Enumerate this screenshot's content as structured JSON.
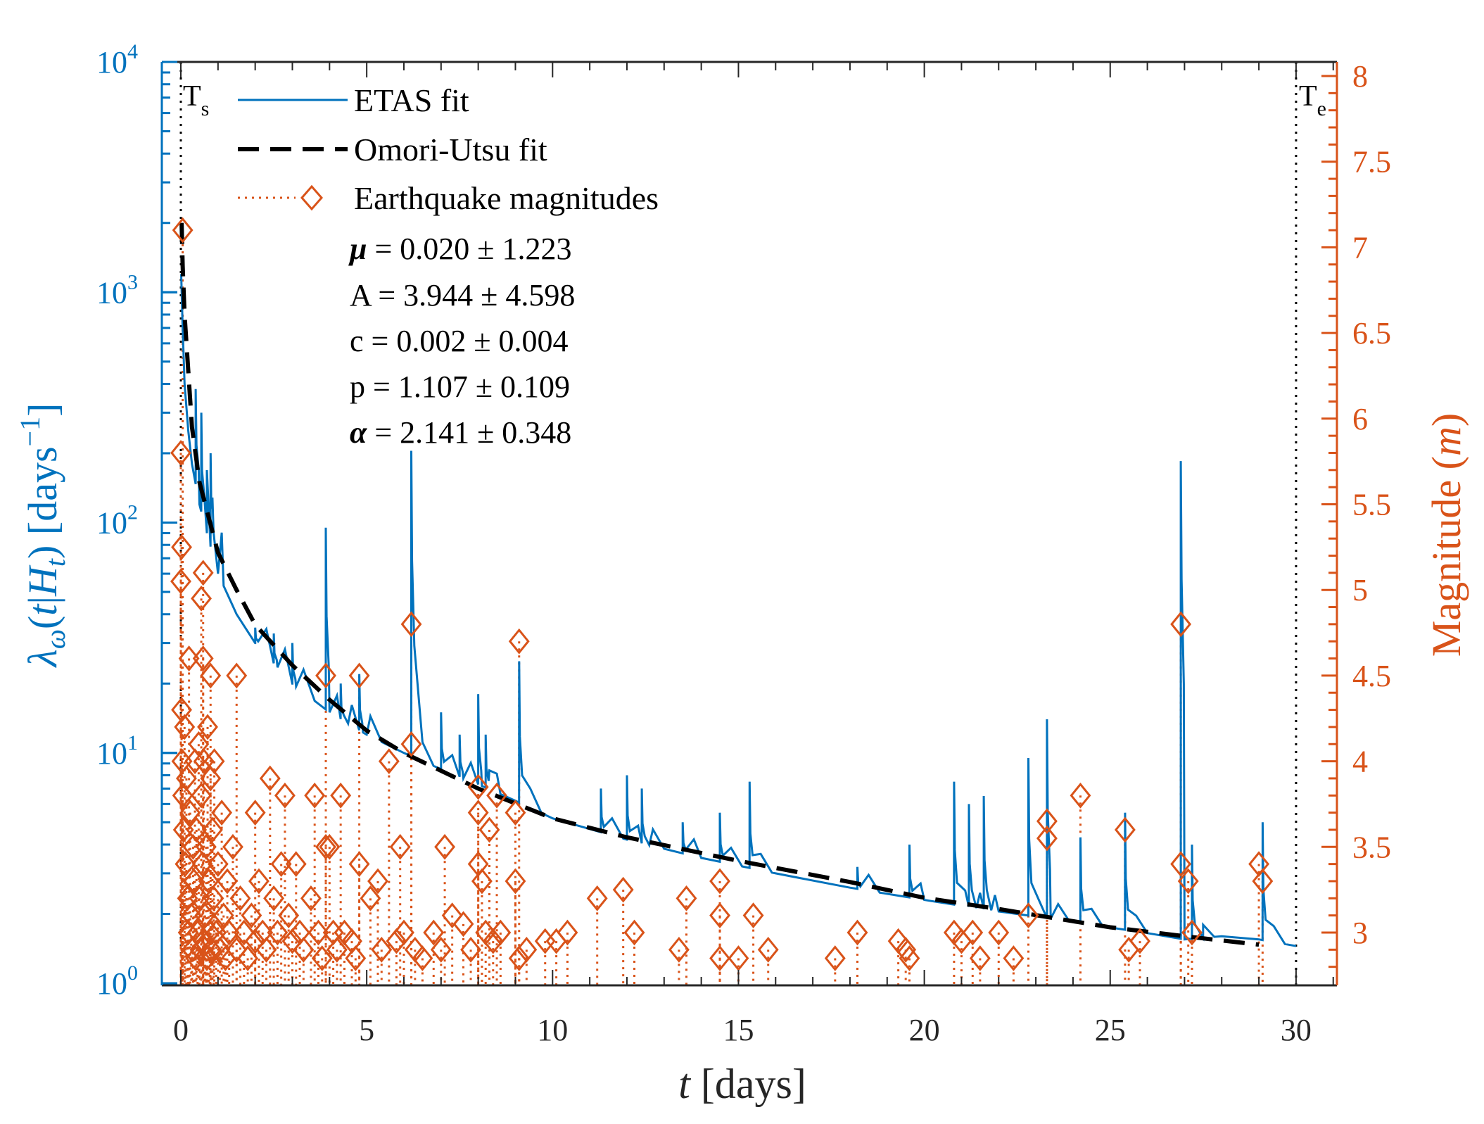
{
  "chart_data": {
    "type": "line",
    "title": "",
    "xlabel": {
      "italic": "t",
      "rest": " [days]"
    },
    "ylabel_left": {
      "text": "λω(t|Ht) [days⁻¹]",
      "lambda": "λ",
      "omega": "ω",
      "open": "(",
      "t": "t",
      "bar": "|",
      "H": "H",
      "sub": "t",
      "close": ")",
      "unit": " [days",
      "exp": "−1",
      "end": "]"
    },
    "ylabel_right": {
      "text": "Magnitude",
      "open": " (",
      "m": "m",
      "close": ")"
    },
    "xlim": [
      -0.5,
      31
    ],
    "xticks": [
      "0",
      "5",
      "10",
      "15",
      "20",
      "25",
      "30"
    ],
    "xtick_values": [
      0,
      5,
      10,
      15,
      20,
      25,
      30
    ],
    "ylim_left": [
      1,
      10000
    ],
    "yscale_left": "log",
    "yticks_left": [
      {
        "base": "10",
        "exp": "0"
      },
      {
        "base": "10",
        "exp": "1"
      },
      {
        "base": "10",
        "exp": "2"
      },
      {
        "base": "10",
        "exp": "3"
      },
      {
        "base": "10",
        "exp": "4"
      }
    ],
    "ylim_right": [
      2.72,
      8.05
    ],
    "yticks_right": [
      "3",
      "3.5",
      "4",
      "4.5",
      "5",
      "5.5",
      "6",
      "6.5",
      "7",
      "7.5",
      "8"
    ],
    "ytick_right_values": [
      3,
      3.5,
      4,
      4.5,
      5,
      5.5,
      6,
      6.5,
      7,
      7.5,
      8
    ],
    "colors": {
      "etas": "#0072BD",
      "omori": "#000000",
      "mag": "#D95319",
      "axis": "#262626"
    },
    "markers": {
      "start": {
        "label": "T",
        "sub": "s",
        "t": 0
      },
      "end": {
        "label": "T",
        "sub": "e",
        "t": 30
      }
    },
    "legend": {
      "placement": "top-left",
      "items": [
        {
          "label": "ETAS fit",
          "style": "solid"
        },
        {
          "label": "Omori-Utsu fit",
          "style": "dashed"
        },
        {
          "label": "Earthquake magnitudes",
          "style": "dotted-diamond"
        }
      ]
    },
    "parameters": [
      {
        "symbol": "μ",
        "value": " = 0.020 ± 1.223",
        "italic": true
      },
      {
        "symbol": "A",
        "value": " = 3.944 ± 4.598",
        "italic": false
      },
      {
        "symbol": "c",
        "value": " = 0.002 ± 0.004",
        "italic": false
      },
      {
        "symbol": "p",
        "value": " = 1.107 ± 0.109",
        "italic": false
      },
      {
        "symbol": "α",
        "value": " = 2.141 ± 0.348",
        "italic": true
      }
    ],
    "series": [
      {
        "name": "ETAS fit",
        "axis": "left",
        "baseline": [
          [
            0.01,
            1200
          ],
          [
            0.05,
            700
          ],
          [
            0.1,
            400
          ],
          [
            0.2,
            250
          ],
          [
            0.3,
            180
          ],
          [
            0.5,
            120
          ],
          [
            0.7,
            90
          ],
          [
            1,
            60
          ],
          [
            1.5,
            40
          ],
          [
            2,
            30
          ],
          [
            3,
            20
          ],
          [
            4,
            15
          ],
          [
            5,
            12
          ],
          [
            6,
            10
          ],
          [
            7,
            8.5
          ],
          [
            8,
            7.3
          ],
          [
            9,
            6.2
          ],
          [
            10,
            5.2
          ],
          [
            12,
            4.2
          ],
          [
            14,
            3.5
          ],
          [
            16,
            3.0
          ],
          [
            18,
            2.6
          ],
          [
            20,
            2.3
          ],
          [
            22,
            2.05
          ],
          [
            24,
            1.85
          ],
          [
            26,
            1.65
          ],
          [
            27,
            1.55
          ],
          [
            28,
            1.6
          ],
          [
            29,
            1.55
          ],
          [
            30,
            1.45
          ]
        ],
        "spikes": [
          [
            0.4,
            380
          ],
          [
            0.55,
            300
          ],
          [
            0.8,
            200
          ],
          [
            2.0,
            35
          ],
          [
            2.5,
            33
          ],
          [
            3.0,
            30
          ],
          [
            3.9,
            95
          ],
          [
            4.3,
            20
          ],
          [
            4.8,
            22
          ],
          [
            6.2,
            205
          ],
          [
            7.0,
            15
          ],
          [
            7.5,
            12
          ],
          [
            8.0,
            18
          ],
          [
            8.2,
            12
          ],
          [
            9.1,
            25
          ],
          [
            11.3,
            7
          ],
          [
            12.0,
            8
          ],
          [
            12.4,
            7
          ],
          [
            13.5,
            5
          ],
          [
            14.5,
            5.5
          ],
          [
            15.3,
            7.5
          ],
          [
            18.2,
            3.2
          ],
          [
            19.6,
            4
          ],
          [
            20.8,
            7.5
          ],
          [
            21.2,
            6
          ],
          [
            21.6,
            6.5
          ],
          [
            22.8,
            9.5
          ],
          [
            23.3,
            14
          ],
          [
            24.2,
            4.3
          ],
          [
            25.4,
            5.5
          ],
          [
            26.9,
            185
          ],
          [
            27.2,
            4
          ],
          [
            29.1,
            5
          ]
        ]
      },
      {
        "name": "Omori-Utsu fit",
        "axis": "left",
        "points": [
          [
            0.02,
            2000
          ],
          [
            0.05,
            1300
          ],
          [
            0.1,
            800
          ],
          [
            0.3,
            260
          ],
          [
            0.5,
            150
          ],
          [
            1,
            74
          ],
          [
            1.5,
            51
          ],
          [
            2,
            36
          ],
          [
            3,
            24
          ],
          [
            4,
            17
          ],
          [
            5,
            12.5
          ],
          [
            6,
            10
          ],
          [
            8,
            7
          ],
          [
            10,
            5.2
          ],
          [
            12,
            4.3
          ],
          [
            15,
            3.4
          ],
          [
            18,
            2.75
          ],
          [
            20,
            2.35
          ],
          [
            22,
            2.1
          ],
          [
            25,
            1.75
          ],
          [
            27,
            1.6
          ],
          [
            29,
            1.47
          ]
        ]
      },
      {
        "name": "Earthquake magnitudes",
        "axis": "right",
        "points": [
          [
            0.05,
            7.1
          ],
          [
            0.0,
            5.8
          ],
          [
            0.02,
            5.25
          ],
          [
            0.0,
            5.05
          ],
          [
            0.6,
            5.1
          ],
          [
            0.55,
            4.95
          ],
          [
            0.6,
            4.6
          ],
          [
            0.8,
            4.5
          ],
          [
            1.5,
            4.5
          ],
          [
            3.9,
            4.5
          ],
          [
            4.8,
            4.5
          ],
          [
            6.2,
            4.8
          ],
          [
            9.1,
            4.7
          ],
          [
            6.2,
            4.1
          ],
          [
            5.6,
            4.0
          ],
          [
            2.4,
            3.9
          ],
          [
            3.6,
            3.8
          ],
          [
            4.3,
            3.8
          ],
          [
            2.8,
            3.8
          ],
          [
            2.0,
            3.7
          ],
          [
            8.0,
            3.85
          ],
          [
            8.0,
            3.7
          ],
          [
            8.5,
            3.8
          ],
          [
            9.0,
            3.7
          ],
          [
            8.3,
            3.6
          ],
          [
            5.9,
            3.5
          ],
          [
            7.1,
            3.5
          ],
          [
            3.9,
            3.5
          ],
          [
            4.0,
            3.5
          ],
          [
            4.8,
            3.4
          ],
          [
            5.3,
            3.3
          ],
          [
            8.0,
            3.4
          ],
          [
            8.1,
            3.3
          ],
          [
            9.0,
            3.3
          ],
          [
            11.2,
            3.2
          ],
          [
            11.9,
            3.25
          ],
          [
            13.6,
            3.2
          ],
          [
            14.5,
            3.3
          ],
          [
            14.5,
            3.1
          ],
          [
            15.4,
            3.1
          ],
          [
            12.2,
            3.0
          ],
          [
            10.1,
            2.95
          ],
          [
            10.4,
            3.0
          ],
          [
            9.8,
            2.95
          ],
          [
            9.3,
            2.9
          ],
          [
            9.1,
            2.85
          ],
          [
            13.4,
            2.9
          ],
          [
            15.8,
            2.9
          ],
          [
            14.5,
            2.85
          ],
          [
            15.0,
            2.85
          ],
          [
            17.6,
            2.85
          ],
          [
            18.2,
            3.0
          ],
          [
            19.3,
            2.95
          ],
          [
            19.5,
            2.9
          ],
          [
            19.6,
            2.85
          ],
          [
            20.8,
            3.0
          ],
          [
            21.0,
            2.95
          ],
          [
            21.3,
            3.0
          ],
          [
            21.5,
            2.85
          ],
          [
            22.0,
            3.0
          ],
          [
            22.4,
            2.85
          ],
          [
            22.8,
            3.1
          ],
          [
            23.3,
            3.65
          ],
          [
            23.3,
            3.55
          ],
          [
            24.2,
            3.8
          ],
          [
            25.4,
            3.6
          ],
          [
            25.5,
            2.9
          ],
          [
            25.8,
            2.95
          ],
          [
            26.9,
            4.8
          ],
          [
            26.9,
            3.4
          ],
          [
            27.1,
            3.3
          ],
          [
            27.2,
            3.0
          ],
          [
            29.0,
            3.4
          ],
          [
            29.1,
            3.3
          ],
          [
            0.02,
            4.3
          ],
          [
            0.03,
            4.0
          ],
          [
            0.05,
            3.8
          ],
          [
            0.07,
            3.6
          ],
          [
            0.1,
            4.2
          ],
          [
            0.12,
            3.4
          ],
          [
            0.15,
            3.9
          ],
          [
            0.18,
            3.2
          ],
          [
            0.2,
            3.0
          ],
          [
            0.22,
            4.6
          ],
          [
            0.25,
            3.7
          ],
          [
            0.28,
            3.1
          ],
          [
            0.3,
            2.9
          ],
          [
            0.33,
            3.5
          ],
          [
            0.35,
            3.3
          ],
          [
            0.38,
            4.0
          ],
          [
            0.4,
            2.85
          ],
          [
            0.42,
            3.6
          ],
          [
            0.45,
            3.0
          ],
          [
            0.48,
            4.1
          ],
          [
            0.5,
            3.2
          ],
          [
            0.52,
            2.9
          ],
          [
            0.55,
            3.8
          ],
          [
            0.58,
            3.4
          ],
          [
            0.6,
            2.95
          ],
          [
            0.62,
            4.0
          ],
          [
            0.65,
            3.1
          ],
          [
            0.68,
            3.5
          ],
          [
            0.7,
            2.85
          ],
          [
            0.72,
            4.2
          ],
          [
            0.75,
            3.3
          ],
          [
            0.78,
            3.0
          ],
          [
            0.8,
            3.9
          ],
          [
            0.82,
            2.9
          ],
          [
            0.85,
            3.6
          ],
          [
            0.88,
            3.2
          ],
          [
            0.9,
            4.0
          ],
          [
            0.95,
            3.0
          ],
          [
            1.0,
            3.4
          ],
          [
            1.05,
            2.9
          ],
          [
            1.1,
            3.7
          ],
          [
            1.15,
            3.1
          ],
          [
            1.2,
            2.85
          ],
          [
            1.25,
            3.3
          ],
          [
            1.3,
            3.0
          ],
          [
            1.4,
            3.5
          ],
          [
            1.5,
            2.9
          ],
          [
            1.6,
            3.2
          ],
          [
            1.7,
            3.0
          ],
          [
            1.8,
            2.85
          ],
          [
            1.9,
            3.1
          ],
          [
            2.0,
            2.95
          ],
          [
            2.1,
            3.3
          ],
          [
            2.2,
            3.0
          ],
          [
            2.3,
            2.9
          ],
          [
            2.5,
            3.2
          ],
          [
            2.6,
            3.0
          ],
          [
            2.7,
            3.4
          ],
          [
            2.9,
            3.1
          ],
          [
            3.0,
            2.95
          ],
          [
            3.1,
            3.4
          ],
          [
            3.2,
            3.0
          ],
          [
            3.3,
            2.9
          ],
          [
            3.5,
            3.2
          ],
          [
            3.7,
            3.0
          ],
          [
            3.8,
            2.85
          ],
          [
            4.1,
            3.0
          ],
          [
            4.2,
            2.9
          ],
          [
            4.4,
            3.0
          ],
          [
            4.6,
            2.95
          ],
          [
            4.7,
            2.85
          ],
          [
            5.1,
            3.2
          ],
          [
            5.4,
            2.9
          ],
          [
            5.8,
            2.95
          ],
          [
            6.0,
            3.0
          ],
          [
            6.3,
            2.9
          ],
          [
            6.5,
            2.85
          ],
          [
            6.8,
            3.0
          ],
          [
            7.0,
            2.9
          ],
          [
            7.3,
            3.1
          ],
          [
            7.6,
            3.05
          ],
          [
            7.8,
            2.9
          ],
          [
            8.2,
            3.0
          ],
          [
            8.4,
            2.95
          ],
          [
            8.6,
            3.0
          ]
        ]
      }
    ]
  }
}
